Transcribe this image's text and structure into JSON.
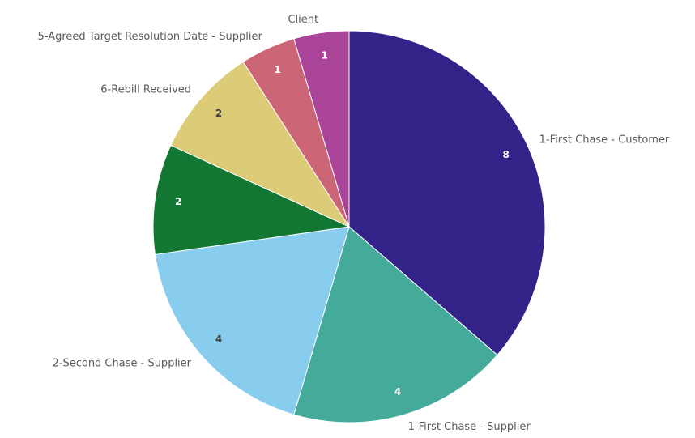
{
  "chart_data": {
    "type": "pie",
    "categories": [
      "1-First Chase - Customer",
      "1-First Chase - Supplier",
      "2-Second Chase - Supplier",
      null,
      "6-Rebill Received",
      "5-Agreed Target Resolution Date - Supplier",
      "Client"
    ],
    "values": [
      8,
      4,
      4,
      2,
      2,
      1,
      1
    ],
    "colors": [
      "#332288",
      "#44aa99",
      "#88ccee",
      "#117733",
      "#ddcc77",
      "#cc6677",
      "#aa4499"
    ]
  }
}
